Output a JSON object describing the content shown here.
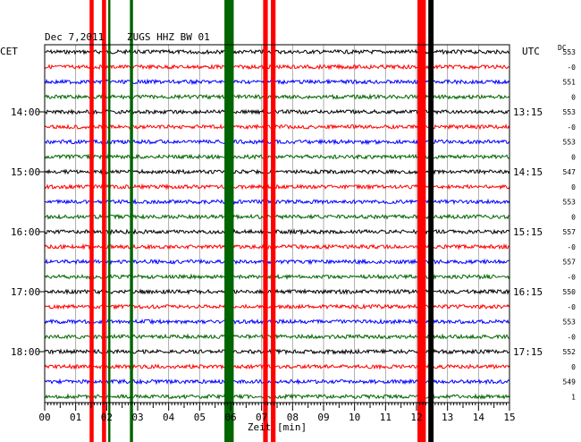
{
  "header": {
    "date": "Dec 7,2011",
    "station": "ZUGS HHZ BW 01",
    "left_tz": "CET",
    "right_tz": "UTC",
    "dc_label": "DC"
  },
  "chart_data": {
    "type": "line",
    "title": "Dec 7,2011   ZUGS HHZ BW 01",
    "xlabel": "Zeit [min]",
    "xlim": [
      0,
      15
    ],
    "x_ticks": [
      "00",
      "01",
      "02",
      "03",
      "04",
      "05",
      "06",
      "07",
      "08",
      "09",
      "10",
      "11",
      "12",
      "13",
      "14",
      "15"
    ],
    "trace_count": 24,
    "trace_colors": [
      "#000000",
      "#ff0000",
      "#0000ff",
      "#006400"
    ],
    "left_hour_labels": [
      {
        "trace": 4,
        "text": "14:00"
      },
      {
        "trace": 8,
        "text": "15:00"
      },
      {
        "trace": 12,
        "text": "16:00"
      },
      {
        "trace": 16,
        "text": "17:00"
      },
      {
        "trace": 20,
        "text": "18:00"
      }
    ],
    "right_hour_labels": [
      {
        "trace": 4,
        "text": "13:15"
      },
      {
        "trace": 8,
        "text": "14:15"
      },
      {
        "trace": 12,
        "text": "15:15"
      },
      {
        "trace": 16,
        "text": "16:15"
      },
      {
        "trace": 20,
        "text": "17:15"
      }
    ],
    "dc_offsets": [
      "553",
      "-0",
      "551",
      "0",
      "553",
      "-0",
      "553",
      "0",
      "547",
      "0",
      "553",
      "0",
      "557",
      "-0",
      "557",
      "-0",
      "550",
      "-0",
      "553",
      "-0",
      "552",
      "0",
      "549",
      "1"
    ],
    "event_bands": [
      {
        "x": [
          1.45,
          1.58
        ],
        "color": "#ff0000"
      },
      {
        "x": [
          1.85,
          1.98
        ],
        "color": "#ff0000"
      },
      {
        "x": [
          2.05,
          2.12
        ],
        "color": "#006400"
      },
      {
        "x": [
          2.75,
          2.85
        ],
        "color": "#006400"
      },
      {
        "x": [
          5.8,
          6.1
        ],
        "color": "#006400"
      },
      {
        "x": [
          7.05,
          7.2
        ],
        "color": "#ff0000"
      },
      {
        "x": [
          7.3,
          7.45
        ],
        "color": "#ff0000"
      },
      {
        "x": [
          12.03,
          12.3
        ],
        "color": "#ff0000"
      },
      {
        "x": [
          12.38,
          12.55
        ],
        "color": "#000000"
      }
    ]
  }
}
